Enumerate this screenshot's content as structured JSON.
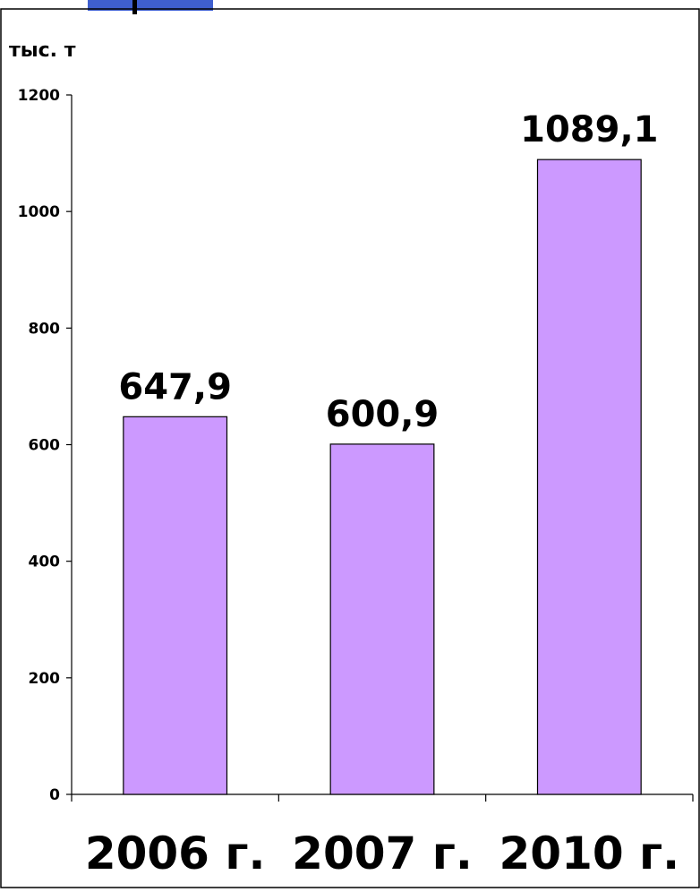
{
  "chart_data": {
    "type": "bar",
    "categories": [
      "2006 г.",
      "2007 г.",
      "2010 г."
    ],
    "values": [
      647.9,
      600.9,
      1089.1
    ],
    "value_labels": [
      "647,9",
      "600,9",
      "1089,1"
    ],
    "title": "",
    "xlabel": "",
    "ylabel": "тыс. т",
    "ylim": [
      0,
      1200
    ],
    "yticks": [
      0,
      200,
      400,
      600,
      800,
      1000,
      1200
    ],
    "grid": false,
    "legend": "none",
    "bar_color": "#cc99ff",
    "bar_stroke": "#000000"
  }
}
